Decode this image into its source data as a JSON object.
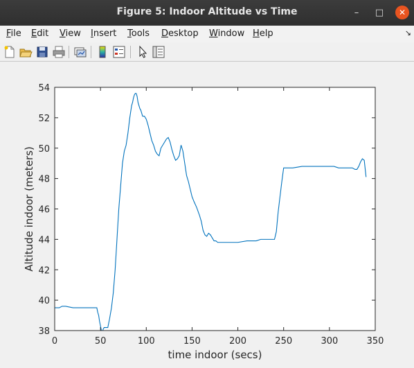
{
  "window": {
    "title": "Figure 5: Indoor Altitude vs Time",
    "minimize_glyph": "–",
    "maximize_glyph": "□",
    "close_glyph": "✕"
  },
  "menubar": {
    "items": [
      {
        "label": "File",
        "u": "F",
        "rest": "ile"
      },
      {
        "label": "Edit",
        "u": "E",
        "rest": "dit"
      },
      {
        "label": "View",
        "u": "V",
        "rest": "iew"
      },
      {
        "label": "Insert",
        "u": "I",
        "rest": "nsert"
      },
      {
        "label": "Tools",
        "u": "T",
        "rest": "ools"
      },
      {
        "label": "Desktop",
        "u": "D",
        "rest": "esktop"
      },
      {
        "label": "Window",
        "u": "W",
        "rest": "indow"
      },
      {
        "label": "Help",
        "u": "H",
        "rest": "elp"
      }
    ],
    "dock_glyph": "↘"
  },
  "toolbar": {
    "icons": [
      "new-figure-icon",
      "open-file-icon",
      "save-icon",
      "print-icon",
      "link-plot-icon",
      "colorbar-icon",
      "legend-icon",
      "edit-plot-icon",
      "property-inspector-icon"
    ]
  },
  "chart_data": {
    "type": "line",
    "title": "",
    "xlabel": "time indoor (secs)",
    "ylabel": "Altitude indoor (meters)",
    "xlim": [
      0,
      350
    ],
    "ylim": [
      38,
      54
    ],
    "xticks": [
      0,
      50,
      100,
      150,
      200,
      250,
      300,
      350
    ],
    "yticks": [
      38,
      40,
      42,
      44,
      46,
      48,
      50,
      52,
      54
    ],
    "grid": false,
    "line_color": "#0072bd",
    "series": [
      {
        "x": [
          0,
          5,
          8,
          12,
          20,
          30,
          40,
          45,
          46,
          47,
          48,
          49,
          50,
          51,
          52,
          53,
          54,
          56,
          58,
          60,
          62,
          64,
          66,
          68,
          70,
          72,
          74,
          76,
          78,
          80,
          82,
          84,
          85,
          86,
          87,
          88,
          89,
          90,
          91,
          92,
          93,
          94,
          96,
          98,
          100,
          102,
          104,
          106,
          108,
          110,
          112,
          114,
          116,
          118,
          120,
          122,
          124,
          126,
          128,
          130,
          132,
          134,
          136,
          138,
          140,
          142,
          144,
          146,
          148,
          150,
          152,
          155,
          158,
          160,
          162,
          164,
          166,
          168,
          170,
          172,
          174,
          176,
          178,
          180,
          183,
          186,
          190,
          195,
          200,
          210,
          215,
          220,
          225,
          230,
          235,
          240,
          242,
          244,
          246,
          248,
          250,
          255,
          260,
          270,
          280,
          290,
          300,
          305,
          310,
          315,
          320,
          325,
          328,
          330,
          332,
          334,
          336,
          338,
          340
        ],
        "y": [
          39.5,
          39.5,
          39.6,
          39.6,
          39.5,
          39.5,
          39.5,
          39.5,
          39.5,
          39.2,
          39.0,
          38.6,
          38.3,
          38.0,
          37.9,
          38.1,
          38.2,
          38.2,
          38.2,
          38.8,
          39.5,
          40.5,
          42.0,
          44.0,
          46.0,
          47.5,
          49.0,
          49.8,
          50.2,
          51.0,
          52.0,
          52.8,
          53.0,
          53.3,
          53.5,
          53.6,
          53.6,
          53.4,
          53.0,
          52.8,
          52.6,
          52.5,
          52.1,
          52.1,
          51.9,
          51.5,
          51.0,
          50.5,
          50.2,
          49.8,
          49.6,
          49.5,
          50.0,
          50.2,
          50.4,
          50.6,
          50.7,
          50.4,
          49.9,
          49.5,
          49.2,
          49.3,
          49.5,
          50.2,
          49.8,
          49.0,
          48.2,
          47.8,
          47.3,
          46.8,
          46.5,
          46.1,
          45.6,
          45.2,
          44.6,
          44.3,
          44.2,
          44.4,
          44.3,
          44.1,
          43.9,
          43.9,
          43.8,
          43.8,
          43.8,
          43.8,
          43.8,
          43.8,
          43.8,
          43.9,
          43.9,
          43.9,
          44.0,
          44.0,
          44.0,
          44.0,
          44.5,
          45.8,
          46.8,
          47.8,
          48.7,
          48.7,
          48.7,
          48.8,
          48.8,
          48.8,
          48.8,
          48.8,
          48.7,
          48.7,
          48.7,
          48.7,
          48.6,
          48.6,
          48.8,
          49.1,
          49.3,
          49.2,
          48.1
        ]
      }
    ]
  }
}
